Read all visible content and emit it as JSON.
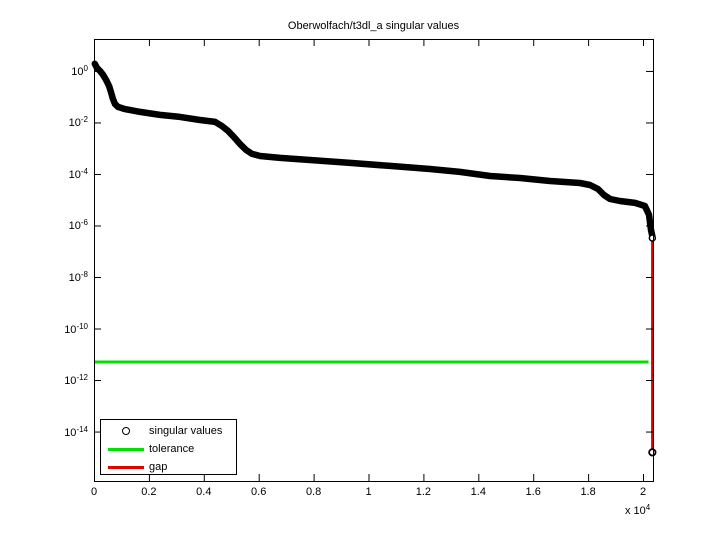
{
  "title": "Oberwolfach/t3dl_a singular values",
  "colors": {
    "curve": "#000000",
    "tolerance": "#00E100",
    "gap": "#DF0000",
    "axis": "#000000",
    "background": "#FFFFFF"
  },
  "x_axis": {
    "tick_values": [
      0,
      2000,
      4000,
      6000,
      8000,
      10000,
      12000,
      14000,
      16000,
      18000,
      20000
    ],
    "tick_labels": [
      "0",
      "0.2",
      "0.4",
      "0.6",
      "0.8",
      "1",
      "1.2",
      "1.4",
      "1.6",
      "1.8",
      "2"
    ],
    "multiplier_mantissa": "x 10",
    "multiplier_exponent": "4"
  },
  "y_axis": {
    "tick_label_base": "10",
    "tick_label_exponents": [
      "0",
      "-2",
      "-4",
      "-6",
      "-8",
      "-10",
      "-12",
      "-14"
    ],
    "tick_exponents": [
      0,
      -2,
      -4,
      -6,
      -8,
      -10,
      -12,
      -14
    ]
  },
  "legend": {
    "items": [
      {
        "label": "singular values",
        "swatch": "circle",
        "color": "#000000"
      },
      {
        "label": "tolerance",
        "swatch": "line",
        "color": "#00E100"
      },
      {
        "label": "gap",
        "swatch": "line",
        "color": "#DF0000"
      }
    ]
  },
  "chart_data": {
    "type": "line",
    "title": "Oberwolfach/t3dl_a singular values",
    "xlabel": "",
    "ylabel": "",
    "x_scale": "linear",
    "y_scale": "log",
    "xlim": [
      0,
      20364
    ],
    "ylim_log10": [
      -15.92,
      1.24
    ],
    "x_unit_multiplier": 10000,
    "grid": false,
    "legend_position": "southwest-inside",
    "series": [
      {
        "name": "singular values",
        "color": "#000000",
        "marker": "o",
        "points": [
          [
            30,
            1.9
          ],
          [
            110,
            1.3
          ],
          [
            220,
            1.0
          ],
          [
            330,
            0.7
          ],
          [
            440,
            0.45
          ],
          [
            550,
            0.26
          ],
          [
            620,
            0.15
          ],
          [
            690,
            0.082
          ],
          [
            765,
            0.052
          ],
          [
            875,
            0.04
          ],
          [
            1130,
            0.033
          ],
          [
            1680,
            0.0256
          ],
          [
            2400,
            0.0196
          ],
          [
            3130,
            0.0164
          ],
          [
            3860,
            0.0125
          ],
          [
            4410,
            0.0105
          ],
          [
            4660,
            0.0073
          ],
          [
            4880,
            0.0047
          ],
          [
            5100,
            0.0027
          ],
          [
            5320,
            0.00146
          ],
          [
            5540,
            0.00086
          ],
          [
            5760,
            0.0006
          ],
          [
            6050,
            0.0005
          ],
          [
            6780,
            0.00042
          ],
          [
            7870,
            0.00035
          ],
          [
            9330,
            0.00027
          ],
          [
            10780,
            0.000205
          ],
          [
            12240,
            0.000156
          ],
          [
            13330,
            0.00012
          ],
          [
            14430,
            8.36e-05
          ],
          [
            15520,
            7e-05
          ],
          [
            16610,
            5.35e-05
          ],
          [
            17700,
            4.47e-05
          ],
          [
            18070,
            3.74e-05
          ],
          [
            18360,
            2.61e-05
          ],
          [
            18580,
            1.53e-05
          ],
          [
            18800,
            1.07e-05
          ],
          [
            19160,
            8.9e-06
          ],
          [
            19710,
            7.5e-06
          ],
          [
            20070,
            5.7e-06
          ],
          [
            20220,
            2.6e-06
          ],
          [
            20290,
            6.7e-07
          ],
          [
            20340,
            3.9e-07
          ]
        ],
        "isolated_point": [
          20340,
          1.55e-15
        ]
      },
      {
        "name": "tolerance",
        "color": "#00E100",
        "y": 5e-12,
        "x_start": 0,
        "x_end": 20200
      },
      {
        "name": "gap",
        "color": "#DF0000",
        "x": 20340,
        "y_start": 3.9e-07,
        "y_end": 1.55e-15
      }
    ]
  }
}
